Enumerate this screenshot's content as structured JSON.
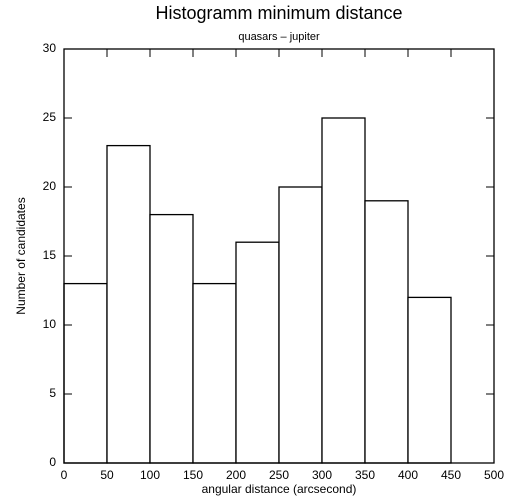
{
  "chart_data": {
    "type": "histogram",
    "title": "Histogramm minimum distance",
    "subtitle": "quasars – jupiter",
    "x_label": "angular distance (arcsecond)",
    "y_label": "Number of candidates",
    "bins": [
      0,
      50,
      100,
      150,
      200,
      250,
      300,
      350,
      400,
      450
    ],
    "counts": [
      13,
      23,
      18,
      13,
      16,
      20,
      25,
      19,
      12
    ],
    "color": "#ffffff",
    "edgecolor": "#000000",
    "xlim": [
      0,
      500
    ],
    "xticks": [
      0,
      50,
      100,
      150,
      200,
      250,
      300,
      350,
      400,
      450,
      500
    ],
    "ylim": [
      0,
      30
    ],
    "yticks": [
      0,
      5,
      10,
      15,
      20,
      25,
      30
    ]
  }
}
